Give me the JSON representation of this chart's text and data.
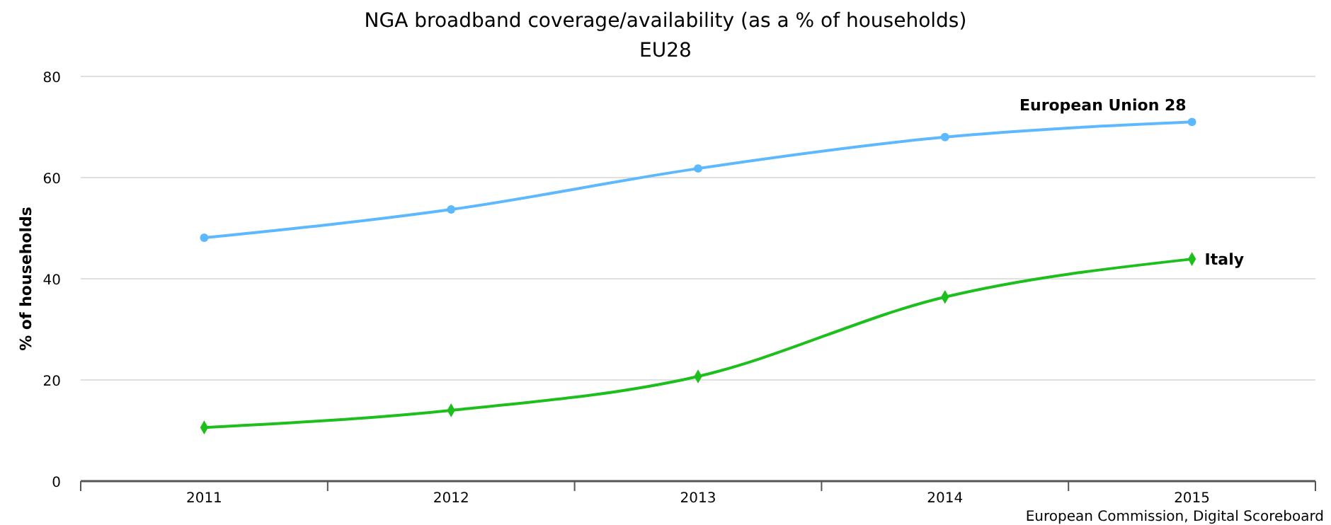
{
  "chart_data": {
    "type": "line",
    "title": "NGA broadband coverage/availability (as a % of households)",
    "subtitle": "EU28",
    "ylabel": "% of households",
    "categories": [
      "2011",
      "2012",
      "2013",
      "2014",
      "2015"
    ],
    "ylim": [
      0,
      80
    ],
    "yticks": [
      0,
      20,
      40,
      60,
      80
    ],
    "grid": "y",
    "legend": false,
    "annotations": [
      "European Commission, Digital Scoreboard"
    ],
    "series": [
      {
        "name": "European Union 28",
        "color": "#5cb8ff",
        "marker": "circle",
        "values": [
          48.1,
          53.7,
          61.8,
          68.0,
          71.0
        ]
      },
      {
        "name": "Italy",
        "color": "#1dbf1d",
        "marker": "diamond",
        "values": [
          10.6,
          14.0,
          20.7,
          36.4,
          43.9
        ]
      }
    ]
  }
}
